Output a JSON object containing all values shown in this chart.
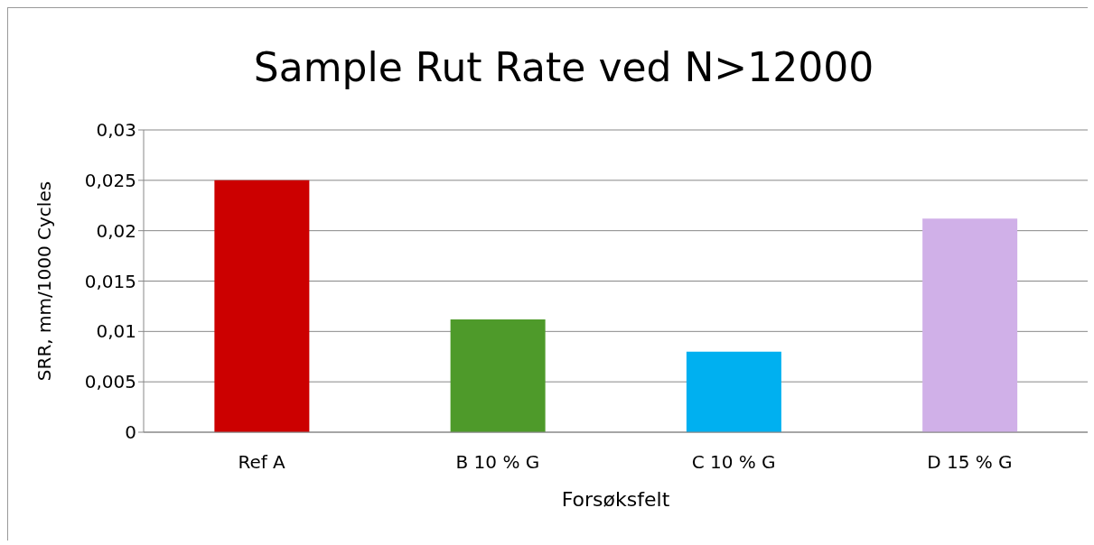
{
  "chart_data": {
    "type": "bar",
    "title": "Sample Rut Rate ved N>12000",
    "xlabel": "Forsøksfelt",
    "ylabel": "SRR, mm/1000 Cycles",
    "categories": [
      "Ref A",
      "B 10 % G",
      "C 10 % G",
      "D 15 % G"
    ],
    "values": [
      0.025,
      0.0112,
      0.008,
      0.0212
    ],
    "colors": [
      "#cc0000",
      "#4e9a2a",
      "#00b0f0",
      "#d0b0e8"
    ],
    "ylim": [
      0,
      0.03
    ],
    "yticks": [
      {
        "value": 0,
        "label": "0"
      },
      {
        "value": 0.005,
        "label": "0,005"
      },
      {
        "value": 0.01,
        "label": "0,01"
      },
      {
        "value": 0.015,
        "label": "0,015"
      },
      {
        "value": 0.02,
        "label": "0,02"
      },
      {
        "value": 0.025,
        "label": "0,025"
      },
      {
        "value": 0.03,
        "label": "0,03"
      }
    ],
    "grid": "y",
    "legend": false
  }
}
